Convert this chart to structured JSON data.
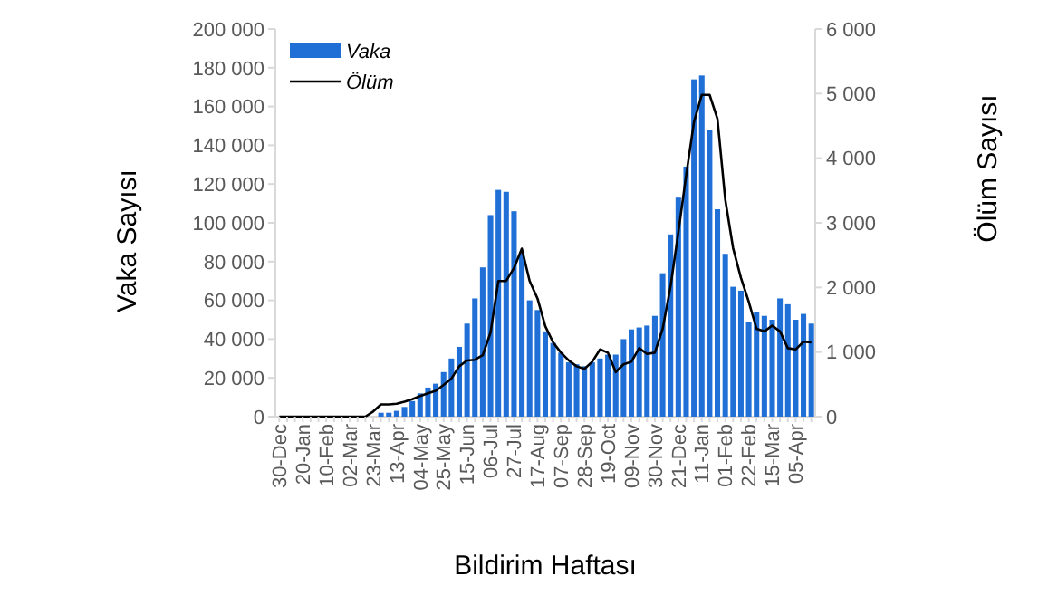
{
  "chart_data": {
    "type": "bar",
    "xlabel": "Bildirim Haftası",
    "ylabel": "Vaka Sayısı",
    "y2label": "Ölüm Sayısı",
    "categories": [
      "30-Dec",
      null,
      null,
      "20-Jan",
      null,
      null,
      "10-Feb",
      null,
      null,
      "02-Mar",
      null,
      null,
      "23-Mar",
      null,
      null,
      "13-Apr",
      null,
      null,
      "04-May",
      null,
      null,
      "25-May",
      null,
      null,
      "15-Jun",
      null,
      null,
      "06-Jul",
      null,
      null,
      "27-Jul",
      null,
      null,
      "17-Aug",
      null,
      null,
      "07-Sep",
      null,
      null,
      "28-Sep",
      null,
      null,
      "19-Oct",
      null,
      null,
      "09-Nov",
      null,
      null,
      "30-Nov",
      null,
      null,
      "21-Dec",
      null,
      null,
      "11-Jan",
      null,
      null,
      "01-Feb",
      null,
      null,
      "22-Feb",
      null,
      null,
      "15-Mar",
      null,
      null,
      "05-Apr",
      null,
      null
    ],
    "series": [
      {
        "name": "Vaka",
        "color": "#1f6fd6",
        "values": [
          0,
          0,
          0,
          0,
          0,
          0,
          0,
          0,
          0,
          0,
          0,
          0,
          0,
          2000,
          2000,
          3000,
          5000,
          8000,
          12000,
          15000,
          17000,
          23000,
          30000,
          36000,
          48000,
          61000,
          77000,
          104000,
          117000,
          116000,
          106000,
          85000,
          60000,
          55000,
          44000,
          38000,
          33000,
          28000,
          27000,
          26000,
          28000,
          30000,
          32000,
          32000,
          40000,
          45000,
          46000,
          47000,
          52000,
          74000,
          94000,
          113000,
          129000,
          174000,
          176000,
          148000,
          107000,
          84000,
          67000,
          65000,
          49000,
          54000,
          52000,
          50000,
          61000,
          58000,
          50000,
          53000,
          48000
        ]
      },
      {
        "name": "Ölüm",
        "type": "line",
        "axis": "y2",
        "color": "#000000",
        "values": [
          0,
          0,
          0,
          0,
          0,
          0,
          0,
          0,
          0,
          0,
          0,
          0,
          80,
          190,
          190,
          200,
          230,
          270,
          320,
          360,
          400,
          490,
          590,
          780,
          870,
          880,
          950,
          1300,
          2100,
          2100,
          2300,
          2600,
          2100,
          1830,
          1400,
          1150,
          990,
          870,
          780,
          740,
          850,
          1040,
          990,
          690,
          810,
          850,
          1060,
          970,
          990,
          1360,
          2010,
          2850,
          3730,
          4560,
          4980,
          4980,
          4610,
          3360,
          2610,
          2150,
          1780,
          1360,
          1320,
          1410,
          1320,
          1060,
          1040,
          1160,
          1150
        ]
      }
    ],
    "ylim": [
      0,
      200000
    ],
    "yticks": [
      {
        "value": 0,
        "label": "0"
      },
      {
        "value": 20000,
        "label": "20 000"
      },
      {
        "value": 40000,
        "label": "40 000"
      },
      {
        "value": 60000,
        "label": "60 000"
      },
      {
        "value": 80000,
        "label": "80 000"
      },
      {
        "value": 100000,
        "label": "100 000"
      },
      {
        "value": 120000,
        "label": "120 000"
      },
      {
        "value": 140000,
        "label": "140 000"
      },
      {
        "value": 160000,
        "label": "160 000"
      },
      {
        "value": 180000,
        "label": "180 000"
      },
      {
        "value": 200000,
        "label": "200 000"
      }
    ],
    "y2lim": [
      0,
      6000
    ],
    "y2ticks": [
      {
        "value": 0,
        "label": "0"
      },
      {
        "value": 1000,
        "label": "1 000"
      },
      {
        "value": 2000,
        "label": "2 000"
      },
      {
        "value": 3000,
        "label": "3 000"
      },
      {
        "value": 4000,
        "label": "4 000"
      },
      {
        "value": 5000,
        "label": "5 000"
      },
      {
        "value": 6000,
        "label": "6 000"
      }
    ],
    "legend": "top left",
    "grid": false,
    "marker": "none",
    "line_style": "solid"
  }
}
